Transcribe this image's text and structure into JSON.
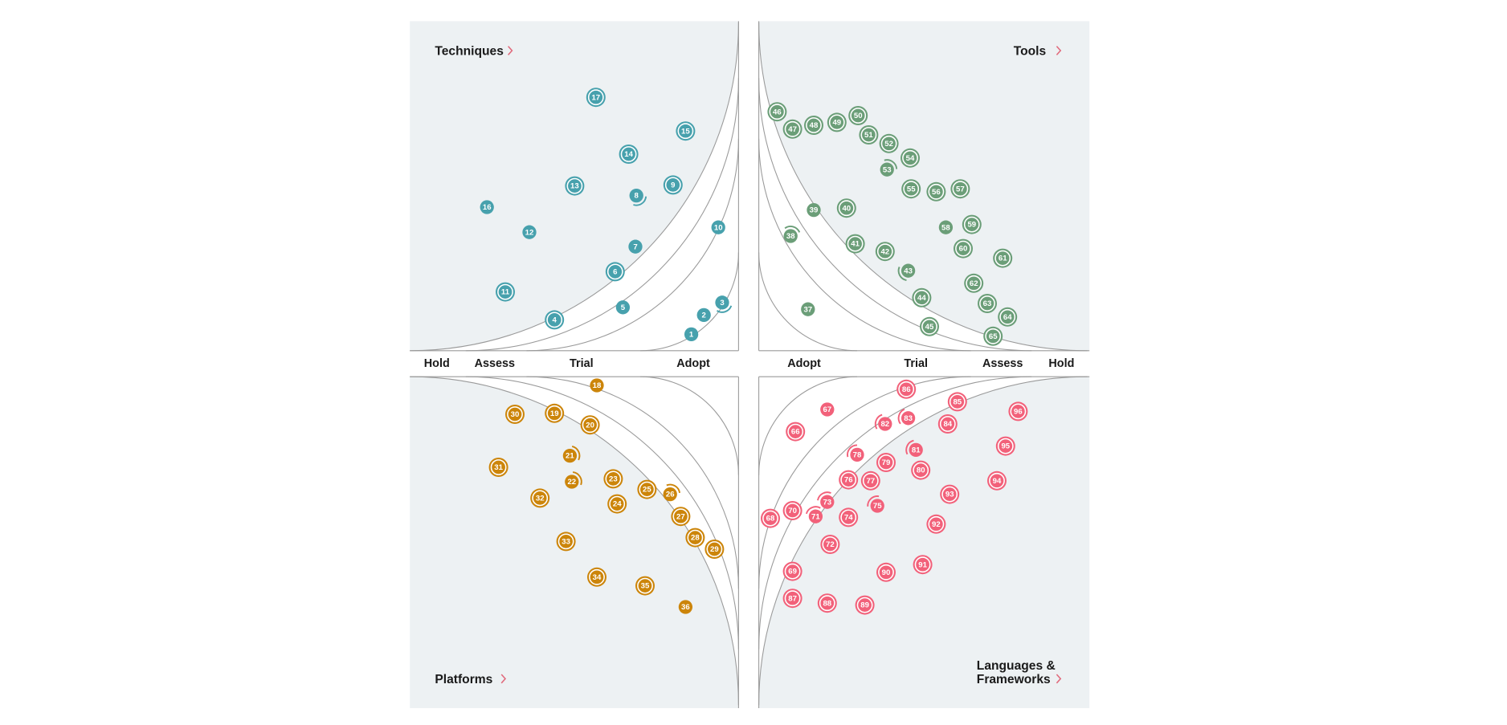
{
  "quadrants": [
    {
      "key": "techniques",
      "title": "Techniques",
      "color": "#47a1ad"
    },
    {
      "key": "tools",
      "title": "Tools",
      "color": "#6b9e78"
    },
    {
      "key": "platforms",
      "title": "Platforms",
      "color": "#cc850a"
    },
    {
      "key": "languages",
      "title_line1": "Languages &",
      "title_line2": "Frameworks",
      "color": "#f2617a"
    }
  ],
  "rings_left": [
    "Hold",
    "Assess",
    "Trial",
    "Adopt"
  ],
  "rings_right": [
    "Adopt",
    "Trial",
    "Assess",
    "Hold"
  ],
  "colors": {
    "panel_background": "#edf1f3",
    "ring_lines": "#9a9a9a",
    "chevron": "#e16a7c"
  },
  "blip_legend": {
    "new": "ring around blip",
    "moved-in": "arc toward center",
    "moved-out": "arc away from center",
    "no-change": "plain blip"
  },
  "blips": [
    {
      "id": "1",
      "quadrant": "techniques",
      "ring": "Adopt",
      "status": "no-change"
    },
    {
      "id": "2",
      "quadrant": "techniques",
      "ring": "Adopt",
      "status": "no-change"
    },
    {
      "id": "3",
      "quadrant": "techniques",
      "ring": "Adopt",
      "status": "moved-in"
    },
    {
      "id": "4",
      "quadrant": "techniques",
      "ring": "Trial",
      "status": "new"
    },
    {
      "id": "5",
      "quadrant": "techniques",
      "ring": "Trial",
      "status": "no-change"
    },
    {
      "id": "6",
      "quadrant": "techniques",
      "ring": "Trial",
      "status": "new"
    },
    {
      "id": "7",
      "quadrant": "techniques",
      "ring": "Trial",
      "status": "no-change"
    },
    {
      "id": "8",
      "quadrant": "techniques",
      "ring": "Trial",
      "status": "moved-in"
    },
    {
      "id": "9",
      "quadrant": "techniques",
      "ring": "Trial",
      "status": "new"
    },
    {
      "id": "10",
      "quadrant": "techniques",
      "ring": "Trial",
      "status": "no-change"
    },
    {
      "id": "11",
      "quadrant": "techniques",
      "ring": "Assess",
      "status": "new"
    },
    {
      "id": "12",
      "quadrant": "techniques",
      "ring": "Assess",
      "status": "no-change"
    },
    {
      "id": "13",
      "quadrant": "techniques",
      "ring": "Assess",
      "status": "new"
    },
    {
      "id": "14",
      "quadrant": "techniques",
      "ring": "Assess",
      "status": "new"
    },
    {
      "id": "15",
      "quadrant": "techniques",
      "ring": "Assess",
      "status": "new"
    },
    {
      "id": "16",
      "quadrant": "techniques",
      "ring": "Hold",
      "status": "no-change"
    },
    {
      "id": "17",
      "quadrant": "techniques",
      "ring": "Hold",
      "status": "new"
    },
    {
      "id": "18",
      "quadrant": "platforms",
      "ring": "Trial",
      "status": "no-change"
    },
    {
      "id": "19",
      "quadrant": "platforms",
      "ring": "Trial",
      "status": "new"
    },
    {
      "id": "20",
      "quadrant": "platforms",
      "ring": "Trial",
      "status": "new"
    },
    {
      "id": "21",
      "quadrant": "platforms",
      "ring": "Trial",
      "status": "moved-in"
    },
    {
      "id": "22",
      "quadrant": "platforms",
      "ring": "Trial",
      "status": "moved-in"
    },
    {
      "id": "23",
      "quadrant": "platforms",
      "ring": "Trial",
      "status": "new"
    },
    {
      "id": "24",
      "quadrant": "platforms",
      "ring": "Trial",
      "status": "new"
    },
    {
      "id": "25",
      "quadrant": "platforms",
      "ring": "Trial",
      "status": "new"
    },
    {
      "id": "26",
      "quadrant": "platforms",
      "ring": "Trial",
      "status": "moved-in"
    },
    {
      "id": "27",
      "quadrant": "platforms",
      "ring": "Trial",
      "status": "new"
    },
    {
      "id": "28",
      "quadrant": "platforms",
      "ring": "Trial",
      "status": "new"
    },
    {
      "id": "29",
      "quadrant": "platforms",
      "ring": "Trial",
      "status": "new"
    },
    {
      "id": "30",
      "quadrant": "platforms",
      "ring": "Assess",
      "status": "new"
    },
    {
      "id": "31",
      "quadrant": "platforms",
      "ring": "Assess",
      "status": "new"
    },
    {
      "id": "32",
      "quadrant": "platforms",
      "ring": "Assess",
      "status": "new"
    },
    {
      "id": "33",
      "quadrant": "platforms",
      "ring": "Assess",
      "status": "new"
    },
    {
      "id": "34",
      "quadrant": "platforms",
      "ring": "Assess",
      "status": "new"
    },
    {
      "id": "35",
      "quadrant": "platforms",
      "ring": "Assess",
      "status": "new"
    },
    {
      "id": "36",
      "quadrant": "platforms",
      "ring": "Assess",
      "status": "no-change"
    },
    {
      "id": "37",
      "quadrant": "tools",
      "ring": "Adopt",
      "status": "no-change"
    },
    {
      "id": "38",
      "quadrant": "tools",
      "ring": "Trial",
      "status": "moved-out"
    },
    {
      "id": "39",
      "quadrant": "tools",
      "ring": "Trial",
      "status": "no-change"
    },
    {
      "id": "40",
      "quadrant": "tools",
      "ring": "Trial",
      "status": "new"
    },
    {
      "id": "41",
      "quadrant": "tools",
      "ring": "Trial",
      "status": "new"
    },
    {
      "id": "42",
      "quadrant": "tools",
      "ring": "Trial",
      "status": "new"
    },
    {
      "id": "43",
      "quadrant": "tools",
      "ring": "Trial",
      "status": "moved-in"
    },
    {
      "id": "44",
      "quadrant": "tools",
      "ring": "Trial",
      "status": "new"
    },
    {
      "id": "45",
      "quadrant": "tools",
      "ring": "Trial",
      "status": "new"
    },
    {
      "id": "46",
      "quadrant": "tools",
      "ring": "Assess",
      "status": "new"
    },
    {
      "id": "47",
      "quadrant": "tools",
      "ring": "Assess",
      "status": "new"
    },
    {
      "id": "48",
      "quadrant": "tools",
      "ring": "Assess",
      "status": "new"
    },
    {
      "id": "49",
      "quadrant": "tools",
      "ring": "Assess",
      "status": "new"
    },
    {
      "id": "50",
      "quadrant": "tools",
      "ring": "Assess",
      "status": "new"
    },
    {
      "id": "51",
      "quadrant": "tools",
      "ring": "Assess",
      "status": "new"
    },
    {
      "id": "52",
      "quadrant": "tools",
      "ring": "Assess",
      "status": "new"
    },
    {
      "id": "53",
      "quadrant": "tools",
      "ring": "Assess",
      "status": "moved-out"
    },
    {
      "id": "54",
      "quadrant": "tools",
      "ring": "Assess",
      "status": "new"
    },
    {
      "id": "55",
      "quadrant": "tools",
      "ring": "Assess",
      "status": "new"
    },
    {
      "id": "56",
      "quadrant": "tools",
      "ring": "Assess",
      "status": "new"
    },
    {
      "id": "57",
      "quadrant": "tools",
      "ring": "Assess",
      "status": "new"
    },
    {
      "id": "58",
      "quadrant": "tools",
      "ring": "Assess",
      "status": "no-change"
    },
    {
      "id": "59",
      "quadrant": "tools",
      "ring": "Assess",
      "status": "new"
    },
    {
      "id": "60",
      "quadrant": "tools",
      "ring": "Assess",
      "status": "new"
    },
    {
      "id": "61",
      "quadrant": "tools",
      "ring": "Assess",
      "status": "new"
    },
    {
      "id": "62",
      "quadrant": "tools",
      "ring": "Assess",
      "status": "new"
    },
    {
      "id": "63",
      "quadrant": "tools",
      "ring": "Assess",
      "status": "new"
    },
    {
      "id": "64",
      "quadrant": "tools",
      "ring": "Assess",
      "status": "new"
    },
    {
      "id": "65",
      "quadrant": "tools",
      "ring": "Assess",
      "status": "new"
    },
    {
      "id": "66",
      "quadrant": "languages",
      "ring": "Adopt",
      "status": "new"
    },
    {
      "id": "67",
      "quadrant": "languages",
      "ring": "Adopt",
      "status": "no-change"
    },
    {
      "id": "68",
      "quadrant": "languages",
      "ring": "Trial",
      "status": "new"
    },
    {
      "id": "69",
      "quadrant": "languages",
      "ring": "Trial",
      "status": "new"
    },
    {
      "id": "70",
      "quadrant": "languages",
      "ring": "Trial",
      "status": "new"
    },
    {
      "id": "71",
      "quadrant": "languages",
      "ring": "Trial",
      "status": "moved-in"
    },
    {
      "id": "72",
      "quadrant": "languages",
      "ring": "Trial",
      "status": "new"
    },
    {
      "id": "73",
      "quadrant": "languages",
      "ring": "Trial",
      "status": "moved-in"
    },
    {
      "id": "74",
      "quadrant": "languages",
      "ring": "Trial",
      "status": "new"
    },
    {
      "id": "75",
      "quadrant": "languages",
      "ring": "Trial",
      "status": "moved-in"
    },
    {
      "id": "76",
      "quadrant": "languages",
      "ring": "Trial",
      "status": "new"
    },
    {
      "id": "77",
      "quadrant": "languages",
      "ring": "Trial",
      "status": "new"
    },
    {
      "id": "78",
      "quadrant": "languages",
      "ring": "Trial",
      "status": "moved-in"
    },
    {
      "id": "79",
      "quadrant": "languages",
      "ring": "Trial",
      "status": "new"
    },
    {
      "id": "80",
      "quadrant": "languages",
      "ring": "Trial",
      "status": "new"
    },
    {
      "id": "81",
      "quadrant": "languages",
      "ring": "Trial",
      "status": "moved-in"
    },
    {
      "id": "82",
      "quadrant": "languages",
      "ring": "Trial",
      "status": "moved-in"
    },
    {
      "id": "83",
      "quadrant": "languages",
      "ring": "Trial",
      "status": "moved-in"
    },
    {
      "id": "84",
      "quadrant": "languages",
      "ring": "Trial",
      "status": "new"
    },
    {
      "id": "85",
      "quadrant": "languages",
      "ring": "Trial",
      "status": "new"
    },
    {
      "id": "86",
      "quadrant": "languages",
      "ring": "Trial",
      "status": "new"
    },
    {
      "id": "87",
      "quadrant": "languages",
      "ring": "Assess",
      "status": "new"
    },
    {
      "id": "88",
      "quadrant": "languages",
      "ring": "Assess",
      "status": "new"
    },
    {
      "id": "89",
      "quadrant": "languages",
      "ring": "Assess",
      "status": "new"
    },
    {
      "id": "90",
      "quadrant": "languages",
      "ring": "Assess",
      "status": "new"
    },
    {
      "id": "91",
      "quadrant": "languages",
      "ring": "Assess",
      "status": "new"
    },
    {
      "id": "92",
      "quadrant": "languages",
      "ring": "Assess",
      "status": "new"
    },
    {
      "id": "93",
      "quadrant": "languages",
      "ring": "Assess",
      "status": "new"
    },
    {
      "id": "94",
      "quadrant": "languages",
      "ring": "Assess",
      "status": "new"
    },
    {
      "id": "95",
      "quadrant": "languages",
      "ring": "Assess",
      "status": "new"
    },
    {
      "id": "96",
      "quadrant": "languages",
      "ring": "Assess",
      "status": "new"
    }
  ]
}
